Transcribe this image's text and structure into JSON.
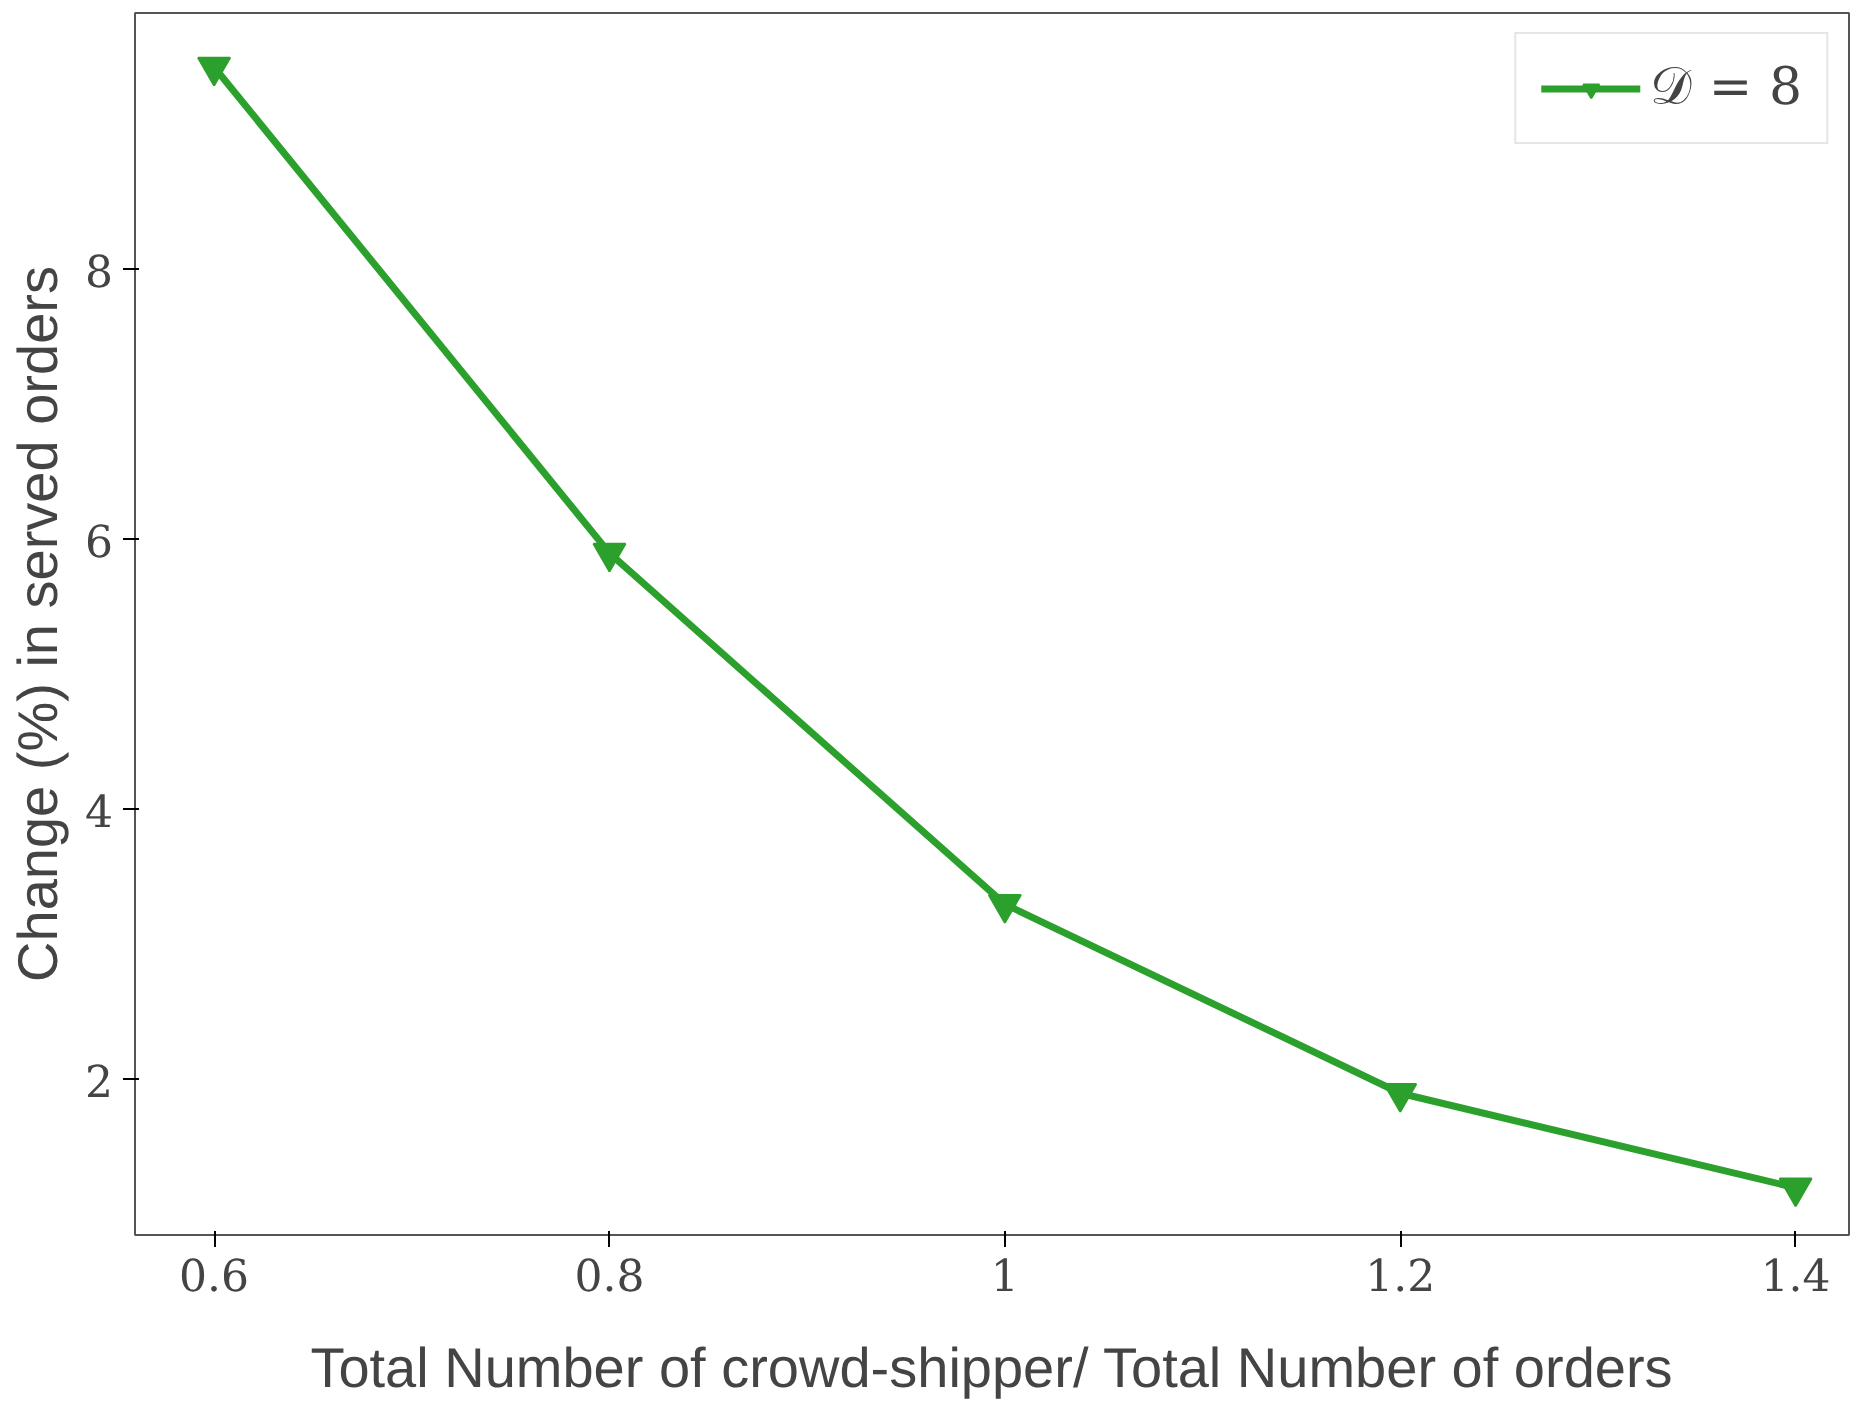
{
  "chart_data": {
    "type": "line",
    "xlabel": "Total Number of crowd-shipper/ Total Number of orders",
    "ylabel": "Change (%) in served orders",
    "x": [
      0.6,
      0.8,
      1.0,
      1.2,
      1.4
    ],
    "series": [
      {
        "name": "𝒟 = 8",
        "color": "#2ca02c",
        "values": [
          9.5,
          5.9,
          3.3,
          1.9,
          1.2
        ]
      }
    ],
    "xlim": [
      0.56,
      1.427
    ],
    "ylim": [
      0.85,
      9.9
    ],
    "xticks": [
      0.6,
      0.8,
      1,
      1.2,
      1.4
    ],
    "yticks": [
      2,
      4,
      6,
      8
    ],
    "grid": false,
    "legend": "top right",
    "marker": "triangle",
    "line_style": "solid"
  }
}
